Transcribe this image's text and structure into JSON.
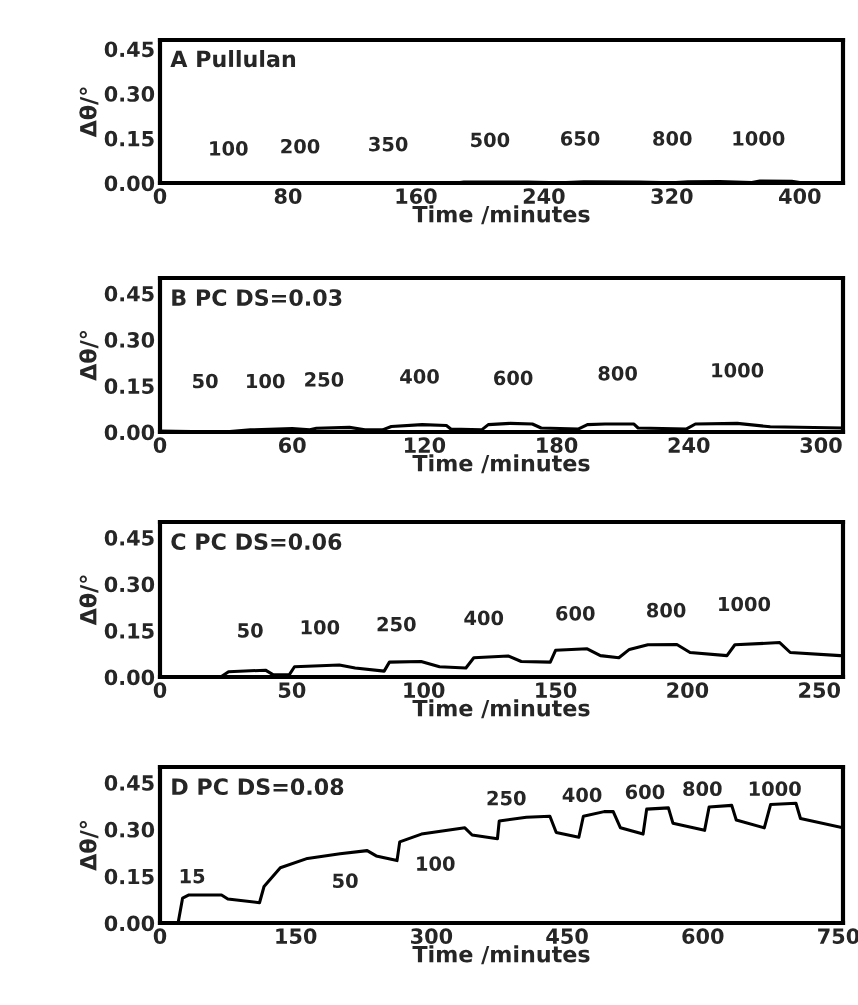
{
  "chart_data": [
    {
      "type": "line",
      "title": "A Pullulan",
      "xlabel": "Time /minutes",
      "ylabel": "Δθ/°",
      "xlim": [
        0,
        427
      ],
      "xticks": [
        0,
        80,
        160,
        240,
        320,
        400
      ],
      "ylim": [
        0,
        0.48
      ],
      "yticks": [
        {
          "value": 0,
          "label": "0.00"
        },
        {
          "value": 0.15,
          "label": "0.15"
        },
        {
          "value": 0.3,
          "label": "0.30"
        },
        {
          "value": 0.45,
          "label": "0.45"
        }
      ],
      "grid": false,
      "legend": false,
      "series": [
        {
          "color": "#000000",
          "x": [
            0,
            185,
            190,
            230,
            250,
            265,
            300,
            320,
            330,
            350,
            370,
            375,
            395,
            400,
            427
          ],
          "values": [
            0,
            0,
            0.003,
            0.003,
            0.001,
            0.004,
            0.003,
            0.001,
            0.004,
            0.005,
            0.002,
            0.007,
            0.006,
            0.002,
            0.002
          ]
        }
      ],
      "annotations": [
        "100",
        "200",
        "350",
        "500",
        "650",
        "800",
        "1000"
      ]
    },
    {
      "type": "line",
      "title": "B PC DS=0.03",
      "xlabel": "Time /minutes",
      "ylabel": "Δθ/°",
      "xlim": [
        0,
        310
      ],
      "xticks": [
        0,
        60,
        120,
        180,
        240,
        300
      ],
      "ylim": [
        0,
        0.5
      ],
      "yticks": [
        {
          "value": 0,
          "label": "0.00"
        },
        {
          "value": 0.15,
          "label": "0.15"
        },
        {
          "value": 0.3,
          "label": "0.30"
        },
        {
          "value": 0.45,
          "label": "0.45"
        }
      ],
      "grid": false,
      "legend": false,
      "series": [
        {
          "color": "#000000",
          "x": [
            0,
            29,
            41,
            60,
            68,
            71,
            86,
            93,
            101,
            105,
            119,
            130,
            132,
            146,
            149,
            159,
            169,
            173,
            190,
            194,
            202,
            215,
            217,
            239,
            243,
            262,
            277,
            310
          ],
          "values": [
            0.003,
            0,
            0.007,
            0.011,
            0.007,
            0.012,
            0.015,
            0.007,
            0.007,
            0.018,
            0.024,
            0.021,
            0.01,
            0.007,
            0.024,
            0.028,
            0.026,
            0.013,
            0.01,
            0.024,
            0.026,
            0.026,
            0.013,
            0.01,
            0.026,
            0.028,
            0.017,
            0.013
          ]
        }
      ],
      "annotations": [
        "50",
        "100",
        "250",
        "400",
        "600",
        "800",
        "1000"
      ]
    },
    {
      "type": "line",
      "title": "C PC DS=0.06",
      "xlabel": "Time /minutes",
      "ylabel": "Δθ/°",
      "xlim": [
        0,
        259
      ],
      "xticks": [
        0,
        50,
        100,
        150,
        200,
        250
      ],
      "ylim": [
        0,
        0.5
      ],
      "yticks": [
        {
          "value": 0,
          "label": "0.00"
        },
        {
          "value": 0.15,
          "label": "0.15"
        },
        {
          "value": 0.3,
          "label": "0.30"
        },
        {
          "value": 0.45,
          "label": "0.45"
        }
      ],
      "grid": false,
      "legend": false,
      "series": [
        {
          "color": "#000000",
          "x": [
            23,
            26,
            40,
            43,
            49,
            51,
            68,
            74,
            85,
            87,
            99,
            106,
            116,
            119,
            132,
            137,
            148,
            150,
            162,
            167,
            174,
            178,
            185,
            196,
            201,
            215,
            218,
            235,
            239,
            258
          ],
          "values": [
            0,
            0.017,
            0.022,
            0.007,
            0.007,
            0.033,
            0.039,
            0.029,
            0.019,
            0.048,
            0.05,
            0.033,
            0.029,
            0.062,
            0.068,
            0.05,
            0.048,
            0.086,
            0.091,
            0.069,
            0.062,
            0.089,
            0.104,
            0.105,
            0.079,
            0.069,
            0.104,
            0.111,
            0.079,
            0.069
          ]
        }
      ],
      "annotations": [
        "50",
        "100",
        "250",
        "400",
        "600",
        "800",
        "1000"
      ]
    },
    {
      "type": "line",
      "title": "D PC DS=0.08",
      "xlabel": "Time /minutes",
      "ylabel": "Δθ/°",
      "xlim": [
        0,
        755
      ],
      "xticks": [
        0,
        150,
        300,
        450,
        600,
        750
      ],
      "ylim": [
        0,
        0.5
      ],
      "yticks": [
        {
          "value": 0,
          "label": "0.00"
        },
        {
          "value": 0.15,
          "label": "0.15"
        },
        {
          "value": 0.3,
          "label": "0.30"
        },
        {
          "value": 0.45,
          "label": "0.45"
        }
      ],
      "grid": false,
      "legend": false,
      "series": [
        {
          "color": "#000000",
          "x": [
            20,
            25,
            32,
            68,
            75,
            110,
            115,
            133,
            163,
            199,
            229,
            239,
            262,
            265,
            289,
            337,
            345,
            373,
            375,
            405,
            431,
            438,
            463,
            468,
            491,
            501,
            509,
            534,
            538,
            562,
            567,
            602,
            607,
            632,
            637,
            668,
            675,
            703,
            708,
            755
          ],
          "values": [
            0,
            0.08,
            0.09,
            0.09,
            0.077,
            0.065,
            0.117,
            0.177,
            0.207,
            0.222,
            0.232,
            0.215,
            0.2,
            0.26,
            0.285,
            0.305,
            0.282,
            0.27,
            0.327,
            0.339,
            0.342,
            0.29,
            0.275,
            0.342,
            0.357,
            0.357,
            0.305,
            0.285,
            0.365,
            0.369,
            0.32,
            0.297,
            0.372,
            0.377,
            0.33,
            0.305,
            0.38,
            0.384,
            0.335,
            0.305
          ]
        }
      ],
      "annotations": [
        "15",
        "50",
        "100",
        "250",
        "400",
        "600",
        "800",
        "1000"
      ]
    }
  ]
}
